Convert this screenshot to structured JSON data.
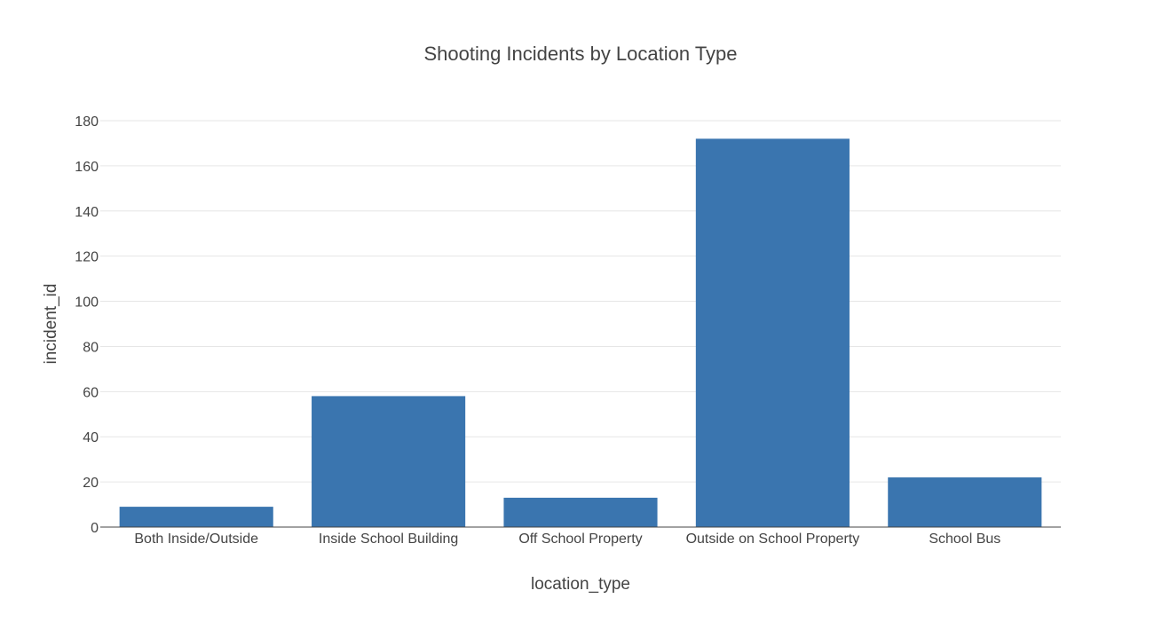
{
  "chart_data": {
    "type": "bar",
    "title": "Shooting Incidents by Location Type",
    "xlabel": "location_type",
    "ylabel": "incident_id",
    "categories": [
      "Both Inside/Outside",
      "Inside School Building",
      "Off School Property",
      "Outside on School Property",
      "School Bus"
    ],
    "values": [
      9,
      58,
      13,
      172,
      22
    ],
    "ylim": [
      0,
      180
    ],
    "yticks": [
      0,
      20,
      40,
      60,
      80,
      100,
      120,
      140,
      160,
      180
    ],
    "grid": true,
    "colors": {
      "bar": "#3a75af"
    }
  }
}
